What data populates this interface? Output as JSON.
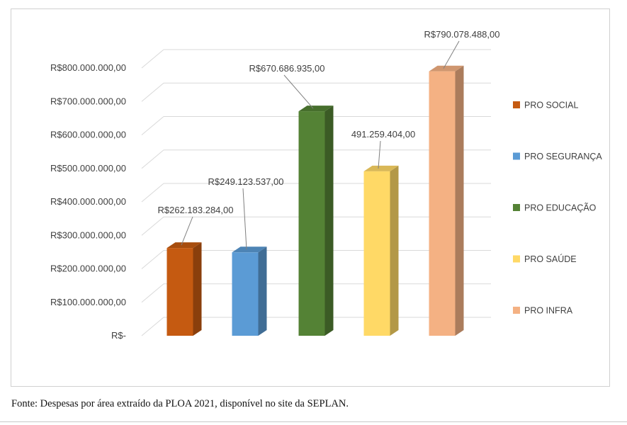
{
  "chart_data": {
    "type": "bar",
    "categories": [
      "PRO SOCIAL",
      "PRO SEGURANÇA",
      "PRO EDUCAÇÃO",
      "PRO SAÚDE",
      "PRO INFRA"
    ],
    "values": [
      262183284,
      249123537,
      670686935,
      491259404,
      790078488
    ],
    "data_labels": [
      "R$262.183.284,00",
      "R$249.123.537,00",
      "R$670.686.935,00",
      "491.259.404,00",
      "R$790.078.488,00"
    ],
    "colors": [
      "#c55a11",
      "#5b9bd5",
      "#548235",
      "#ffd966",
      "#f4b183"
    ],
    "y_ticks": [
      0,
      100000000,
      200000000,
      300000000,
      400000000,
      500000000,
      600000000,
      700000000,
      800000000
    ],
    "y_tick_labels": [
      "R$-",
      "R$100.000.000,00",
      "R$200.000.000,00",
      "R$300.000.000,00",
      "R$400.000.000,00",
      "R$500.000.000,00",
      "R$600.000.000,00",
      "R$700.000.000,00",
      "R$800.000.000,00"
    ],
    "ylim": [
      0,
      800000000
    ],
    "grid": true,
    "three_d": true,
    "legend_position": "right",
    "title": "",
    "xlabel": "",
    "ylabel": ""
  },
  "source_note": "Fonte: Despesas por área extraído da PLOA 2021, disponível no site da SEPLAN."
}
